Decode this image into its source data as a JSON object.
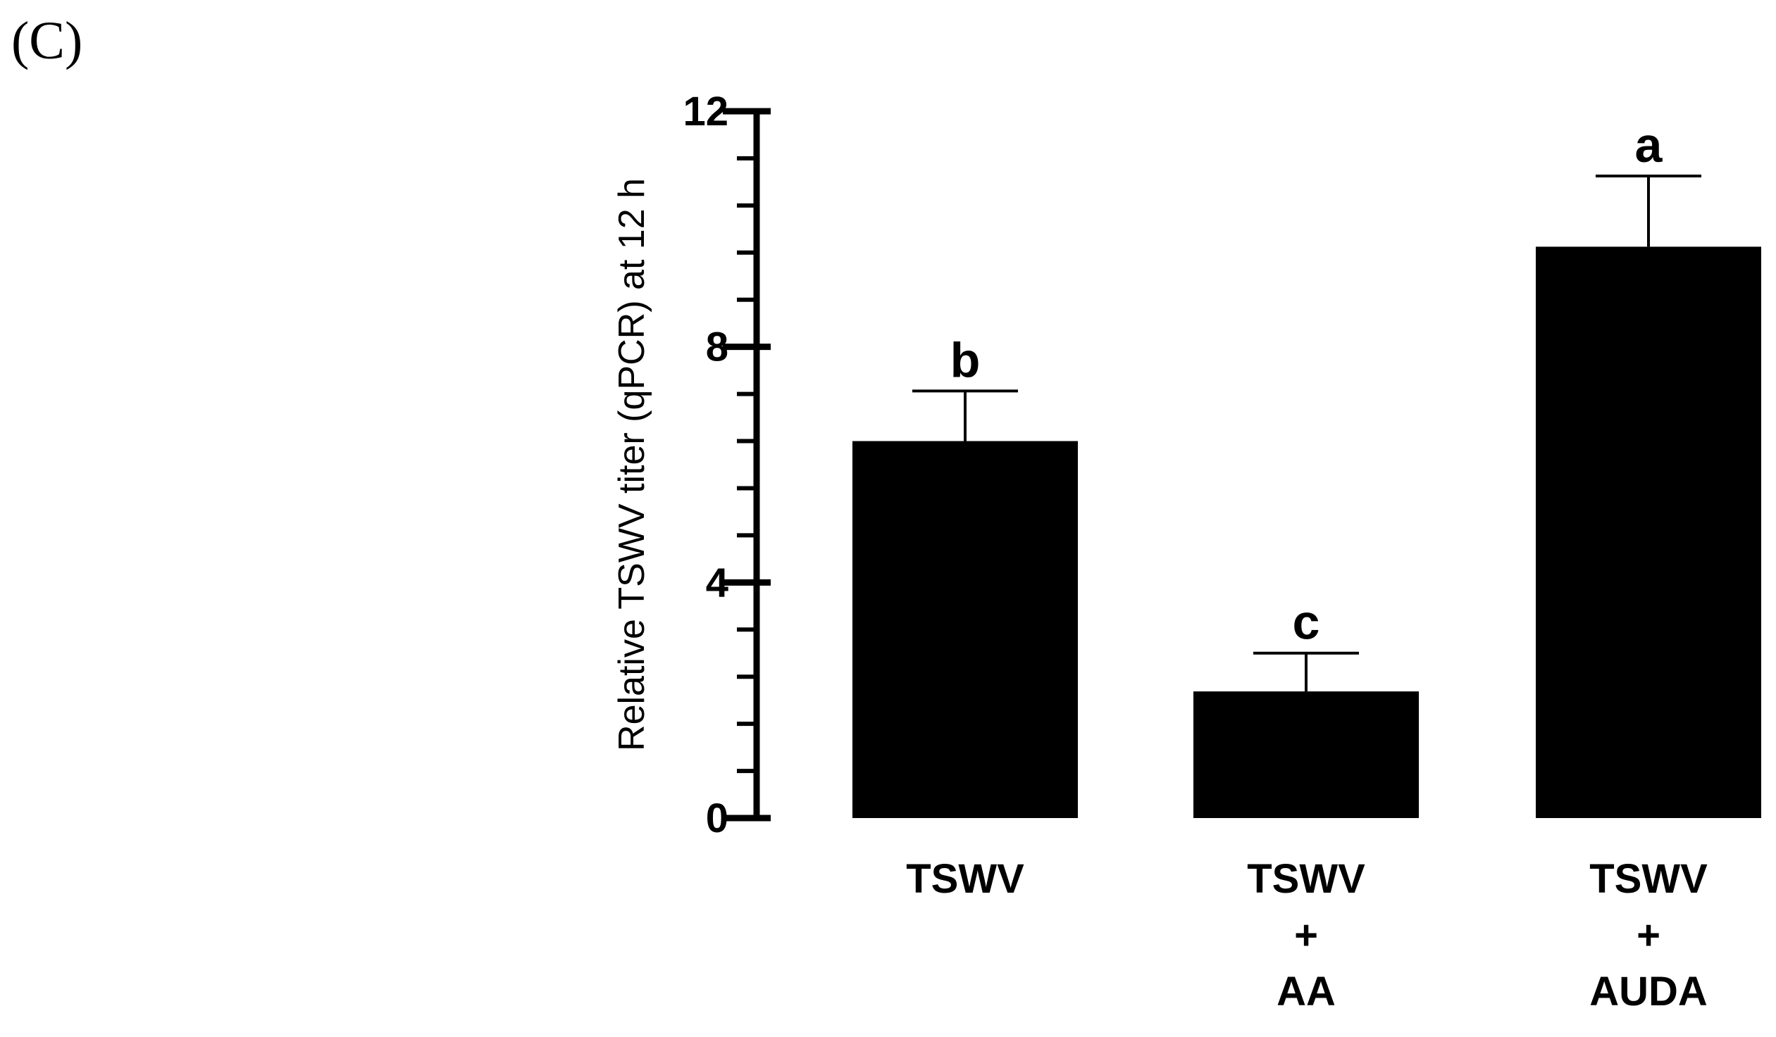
{
  "panel_label": "(C)",
  "chart_data": {
    "type": "bar",
    "title": "",
    "xlabel": "",
    "ylabel": "Relative TSWV titer (qPCR) at 12 h",
    "ylim": [
      0,
      12
    ],
    "yticks": [
      0,
      4,
      8,
      12
    ],
    "yminor_step": 0.8,
    "grid": false,
    "categories": [
      [
        "TSWV"
      ],
      [
        "TSWV",
        "+",
        "AA"
      ],
      [
        "TSWV",
        "+",
        "AUDA"
      ]
    ],
    "values": [
      6.4,
      2.15,
      9.7
    ],
    "errors": [
      0.85,
      0.65,
      1.2
    ],
    "significance_letters": [
      "b",
      "c",
      "a"
    ],
    "bar_color": "#000000"
  }
}
